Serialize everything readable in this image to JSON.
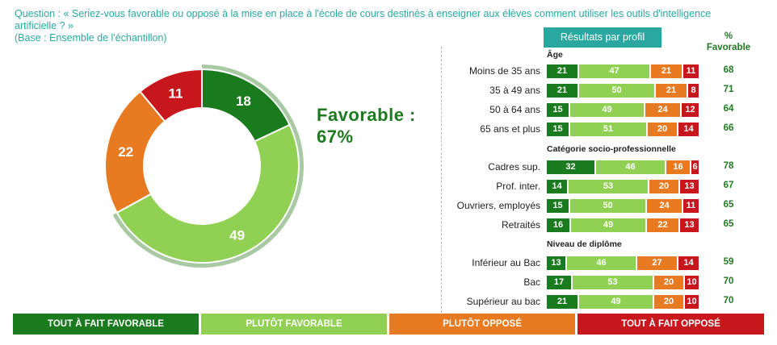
{
  "question": "Question : « Seriez-vous favorable ou opposé à la mise en place à l'école de cours destinés à enseigner aux élèves comment utiliser les outils d'intelligence artificielle ? »",
  "base": "(Base : Ensemble de l'échantillon)",
  "favorable_text": "Favorable :",
  "favorable_value": "67%",
  "profile_button": "Résultats par profil",
  "pct_header": "% Favorable",
  "colors": {
    "tout_a_fait_favorable": "#1a7a1e",
    "plutot_favorable": "#90d153",
    "plutot_oppose": "#e87b22",
    "tout_a_fait_oppose": "#c8161d",
    "teal": "#2aa8a0"
  },
  "legend": [
    "TOUT À FAIT FAVORABLE",
    "PLUTÔT FAVORABLE",
    "PLUTÔT OPPOSÉ",
    "TOUT À FAIT OPPOSÉ"
  ],
  "chart_data": [
    {
      "type": "pie",
      "variant": "donut",
      "labels": [
        "Tout à fait favorable",
        "Plutôt favorable",
        "Plutôt opposé",
        "Tout à fait opposé"
      ],
      "values": [
        18,
        49,
        22,
        11
      ]
    },
    {
      "type": "bar",
      "orientation": "horizontal",
      "stacked": true,
      "series_names": [
        "Tout à fait favorable",
        "Plutôt favorable",
        "Plutôt opposé",
        "Tout à fait opposé"
      ],
      "groups": [
        {
          "title": "Âge",
          "rows": [
            {
              "label": "Moins de 35 ans",
              "values": [
                21,
                47,
                21,
                11
              ],
              "favorable": "68"
            },
            {
              "label": "35 à 49 ans",
              "values": [
                21,
                50,
                21,
                8
              ],
              "favorable": "71"
            },
            {
              "label": "50 à 64 ans",
              "values": [
                15,
                49,
                24,
                12
              ],
              "favorable": "64"
            },
            {
              "label": "65 ans et plus",
              "values": [
                15,
                51,
                20,
                14
              ],
              "favorable": "66"
            }
          ]
        },
        {
          "title": "Catégorie socio-professionnelle",
          "rows": [
            {
              "label": "Cadres sup.",
              "values": [
                32,
                46,
                16,
                6
              ],
              "favorable": "78"
            },
            {
              "label": "Prof. inter.",
              "values": [
                14,
                53,
                20,
                13
              ],
              "favorable": "67"
            },
            {
              "label": "Ouvriers, employés",
              "values": [
                15,
                50,
                24,
                11
              ],
              "favorable": "65"
            },
            {
              "label": "Retraités",
              "values": [
                16,
                49,
                22,
                13
              ],
              "favorable": "65"
            }
          ]
        },
        {
          "title": "Niveau de diplôme",
          "rows": [
            {
              "label": "Inférieur au Bac",
              "values": [
                13,
                46,
                27,
                14
              ],
              "favorable": "59"
            },
            {
              "label": "Bac",
              "values": [
                17,
                53,
                20,
                10
              ],
              "favorable": "70"
            },
            {
              "label": "Supérieur au bac",
              "values": [
                21,
                49,
                20,
                10
              ],
              "favorable": "70"
            }
          ]
        }
      ]
    }
  ]
}
